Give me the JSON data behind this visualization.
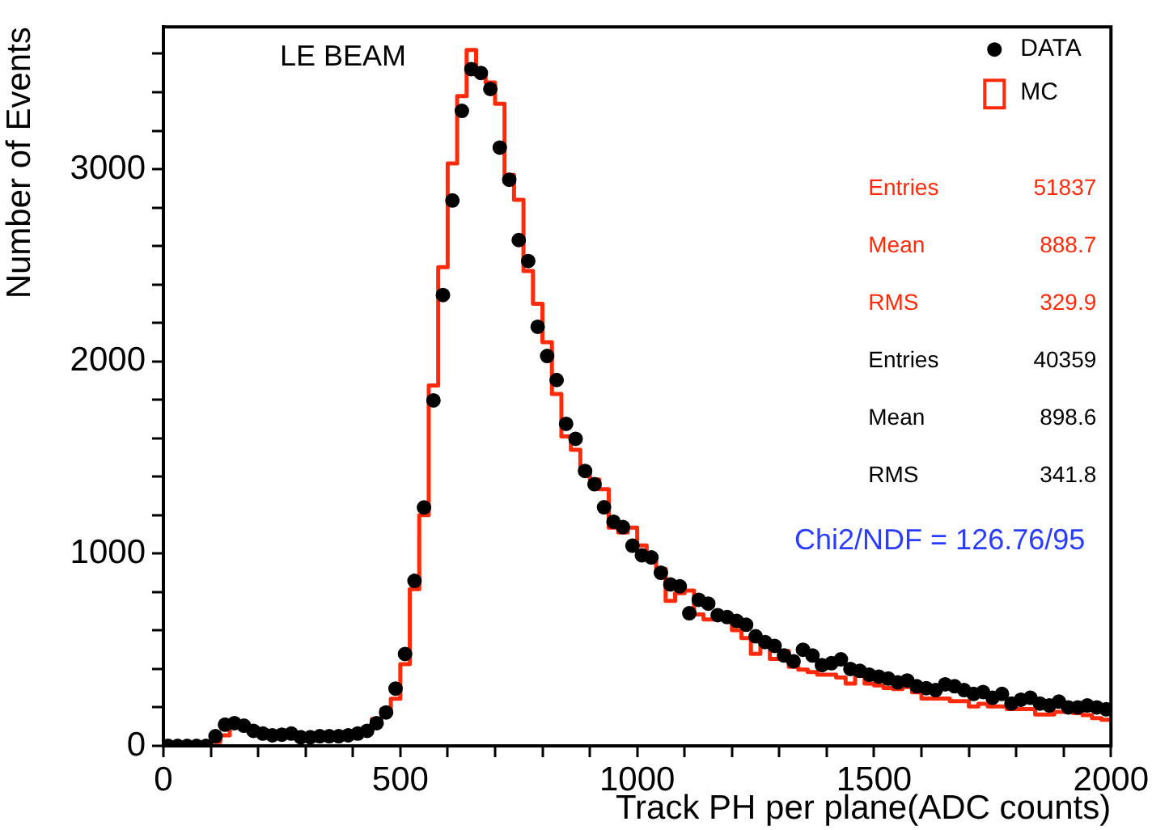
{
  "chart_data": {
    "type": "histogram",
    "xlabel": "Track PH per plane(ADC counts)",
    "ylabel": "Number of Events",
    "bins": [
      0,
      20,
      40,
      60,
      80,
      100,
      120,
      140,
      160,
      180,
      200,
      220,
      240,
      260,
      280,
      300,
      320,
      340,
      360,
      380,
      400,
      420,
      440,
      460,
      480,
      500,
      520,
      540,
      560,
      580,
      600,
      620,
      640,
      660,
      680,
      700,
      720,
      740,
      760,
      780,
      800,
      820,
      840,
      860,
      880,
      900,
      920,
      940,
      960,
      980,
      1000,
      1020,
      1040,
      1060,
      1080,
      1100,
      1120,
      1140,
      1160,
      1180,
      1200,
      1220,
      1240,
      1260,
      1280,
      1300,
      1320,
      1340,
      1360,
      1380,
      1400,
      1420,
      1440,
      1460,
      1480,
      1500,
      1520,
      1540,
      1560,
      1580,
      1600,
      1620,
      1640,
      1660,
      1680,
      1700,
      1720,
      1740,
      1760,
      1780,
      1800,
      1820,
      1840,
      1860,
      1880,
      1900,
      1920,
      1940,
      1960,
      1980,
      2000
    ],
    "series": [
      {
        "name": "DATA",
        "type": "scatter",
        "color": "#000000",
        "x": [
          10,
          30,
          50,
          70,
          90,
          110,
          130,
          150,
          170,
          190,
          210,
          230,
          250,
          270,
          290,
          310,
          330,
          350,
          370,
          390,
          410,
          430,
          450,
          470,
          490,
          510,
          530,
          550,
          570,
          590,
          610,
          630,
          650,
          670,
          690,
          710,
          730,
          750,
          770,
          790,
          810,
          830,
          850,
          870,
          890,
          910,
          930,
          950,
          970,
          990,
          1010,
          1030,
          1050,
          1070,
          1090,
          1110,
          1130,
          1150,
          1170,
          1190,
          1210,
          1230,
          1250,
          1270,
          1290,
          1310,
          1330,
          1350,
          1370,
          1390,
          1410,
          1430,
          1450,
          1470,
          1490,
          1510,
          1530,
          1550,
          1570,
          1590,
          1610,
          1630,
          1650,
          1670,
          1690,
          1710,
          1730,
          1750,
          1770,
          1790,
          1810,
          1830,
          1850,
          1870,
          1890,
          1910,
          1930,
          1950,
          1970,
          1990
        ],
        "values": [
          0,
          0,
          0,
          0,
          0,
          50,
          110,
          118,
          105,
          78,
          64,
          55,
          58,
          64,
          45,
          45,
          50,
          50,
          50,
          55,
          64,
          78,
          118,
          174,
          298,
          478,
          858,
          1240,
          1797,
          2345,
          2837,
          3303,
          3520,
          3500,
          3417,
          3112,
          2945,
          2631,
          2522,
          2180,
          2028,
          1903,
          1675,
          1597,
          1430,
          1361,
          1241,
          1166,
          1138,
          1041,
          991,
          980,
          900,
          840,
          830,
          690,
          760,
          740,
          680,
          670,
          650,
          630,
          570,
          540,
          520,
          470,
          440,
          500,
          470,
          420,
          430,
          450,
          400,
          390,
          370,
          360,
          350,
          330,
          340,
          310,
          300,
          290,
          320,
          310,
          290,
          270,
          280,
          250,
          270,
          220,
          240,
          250,
          220,
          210,
          230,
          200,
          200,
          210,
          200,
          190
        ]
      },
      {
        "name": "MC",
        "type": "histogram",
        "color": "#ff2a0a",
        "values": [
          0,
          0,
          0,
          0,
          0,
          20,
          55,
          100,
          100,
          90,
          80,
          70,
          65,
          70,
          60,
          50,
          50,
          55,
          55,
          60,
          70,
          75,
          140,
          190,
          245,
          425,
          815,
          1200,
          1875,
          2490,
          3030,
          3380,
          3620,
          3500,
          3450,
          3340,
          2970,
          2840,
          2470,
          2300,
          2100,
          1830,
          1610,
          1540,
          1430,
          1385,
          1335,
          1135,
          1110,
          1135,
          1043,
          974,
          920,
          754,
          794,
          808,
          684,
          657,
          657,
          657,
          602,
          561,
          479,
          520,
          452,
          493,
          411,
          397,
          384,
          370,
          370,
          356,
          324,
          370,
          324,
          315,
          301,
          296,
          306,
          279,
          246,
          246,
          246,
          232,
          232,
          205,
          219,
          205,
          205,
          191,
          191,
          191,
          163,
          163,
          177,
          177,
          170,
          160,
          144,
          136
        ]
      }
    ],
    "xlim": [
      0,
      2000
    ],
    "xticks": [
      0,
      {
        "value": 100,
        "label": null
      },
      {
        "value": 200,
        "label": null
      },
      {
        "value": 300,
        "label": null
      },
      {
        "value": 400,
        "label": null
      },
      500,
      {
        "value": 600,
        "label": null
      },
      {
        "value": 700,
        "label": null
      },
      {
        "value": 800,
        "label": null
      },
      {
        "value": 900,
        "label": null
      },
      1000,
      {
        "value": 1100,
        "label": null
      },
      {
        "value": 1200,
        "label": null
      },
      {
        "value": 1300,
        "label": null
      },
      {
        "value": 1400,
        "label": null
      },
      1500,
      {
        "value": 1600,
        "label": null
      },
      {
        "value": 1700,
        "label": null
      },
      {
        "value": 1800,
        "label": null
      },
      {
        "value": 1900,
        "label": null
      },
      2000
    ],
    "ylim": [
      0,
      3740
    ],
    "yticks": [
      0,
      {
        "value": 200,
        "label": null
      },
      {
        "value": 400,
        "label": null
      },
      {
        "value": 600,
        "label": null
      },
      {
        "value": 800,
        "label": null
      },
      1000,
      {
        "value": 1200,
        "label": null
      },
      {
        "value": 1400,
        "label": null
      },
      {
        "value": 1600,
        "label": null
      },
      {
        "value": 1800,
        "label": null
      },
      2000,
      {
        "value": 2200,
        "label": null
      },
      {
        "value": 2400,
        "label": null
      },
      {
        "value": 2600,
        "label": null
      },
      {
        "value": 2800,
        "label": null
      },
      3000,
      {
        "value": 3200,
        "label": null
      },
      {
        "value": 3400,
        "label": null
      },
      {
        "value": 3600,
        "label": null
      }
    ],
    "grid": false,
    "legend": "top right",
    "marker": "circle",
    "annotations": [
      "LE BEAM",
      "Entries 51837",
      "Mean 888.7",
      "RMS 329.9",
      "Entries 40359",
      "Mean 898.6",
      "RMS 341.8",
      "Chi2/NDF = 126.76/95"
    ]
  }
}
